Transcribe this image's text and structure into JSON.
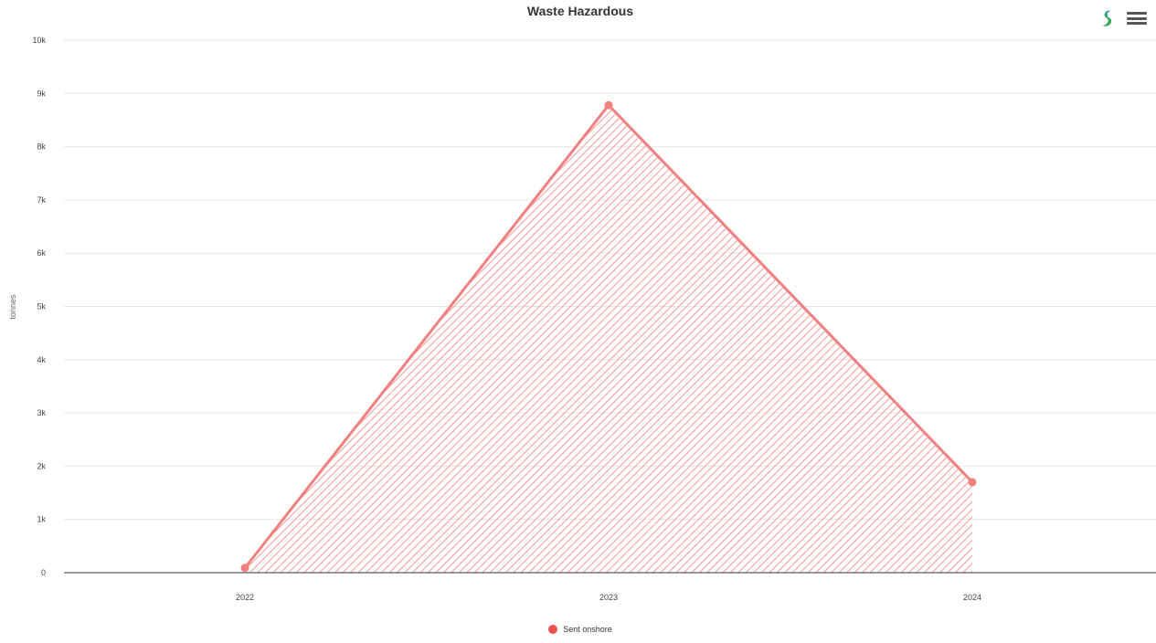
{
  "chart_data": {
    "type": "area",
    "title": "Waste Hazardous",
    "xlabel": "",
    "ylabel": "tonnes",
    "categories": [
      "2022",
      "2023",
      "2024"
    ],
    "series": [
      {
        "name": "Sent onshore",
        "values": [
          90,
          8780,
          1700
        ],
        "color": "#f08080"
      }
    ],
    "ylim": [
      0,
      10000
    ],
    "yticks": [
      0,
      1000,
      2000,
      3000,
      4000,
      5000,
      6000,
      7000,
      8000,
      9000,
      10000
    ],
    "ytick_labels": [
      "0",
      "1k",
      "2k",
      "3k",
      "4k",
      "5k",
      "6k",
      "7k",
      "8k",
      "9k",
      "10k"
    ],
    "grid": true,
    "legend_position": "bottom-center"
  },
  "toolbar": {
    "logo_icon": "leaf-logo-icon",
    "menu_icon": "hamburger-menu-icon"
  },
  "colors": {
    "series": "#f08080",
    "legend_marker": "#f05050",
    "grid": "#e6e6e6",
    "axis": "#333333"
  }
}
